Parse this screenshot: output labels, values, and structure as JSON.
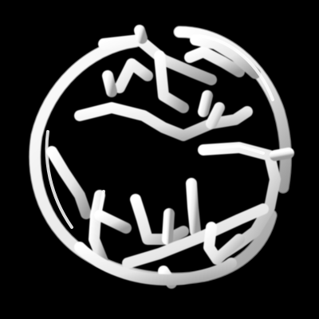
{
  "image": {
    "subject": "white-3d-branching-tube-sphere",
    "background_color": "#000000",
    "tube_color": "#f2f2f2",
    "shadow_color": "#7a7a7a"
  }
}
